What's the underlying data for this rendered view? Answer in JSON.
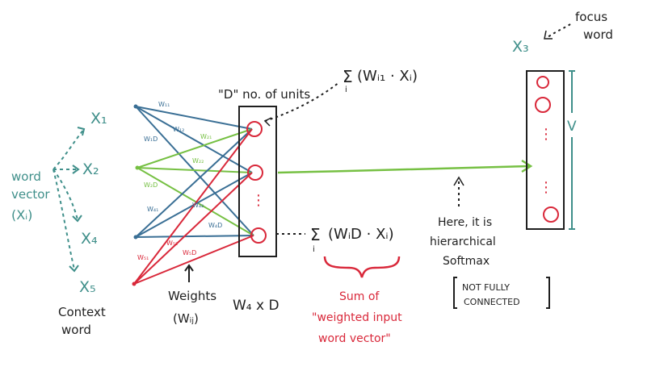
{
  "colors": {
    "teal": "#3f8f8a",
    "green": "#76c043",
    "red": "#d9283a",
    "ink": "#1f1f1f",
    "blue": "#3a6f95",
    "paper": "#ffffff"
  },
  "inputs": {
    "x1": "X₁",
    "x2": "X₂",
    "x4": "X₄",
    "x5": "X₅"
  },
  "left_label": {
    "line1": "word",
    "line2": "vector",
    "line3": "(Xᵢ)"
  },
  "context_label": {
    "line1": "Context",
    "line2": "word"
  },
  "weight_labels": {
    "w11": "W₁₁",
    "w12": "W₁₂",
    "w1d": "W₁D",
    "w21": "W₂₁",
    "w22": "W₂₂",
    "w2d": "W₂D",
    "w41": "W₄₁",
    "w42": "W₄₂",
    "w4d": "W₄D",
    "w51": "W₅₁",
    "w52": "W₅₂",
    "w5d": "W₅D"
  },
  "weights_label": {
    "line1": "Weights",
    "line2": "(Wᵢⱼ)"
  },
  "matrix_label": "W₄ x D",
  "hidden_layer": {
    "title": "\"D\" no. of units",
    "dots": "⋮"
  },
  "formula_top": {
    "sigma": "Σ",
    "sub": "i",
    "body": "(Wᵢ₁ · Xᵢ)"
  },
  "formula_bottom": {
    "sigma": "Σ",
    "sub": "i",
    "body": "(WᵢD · Xᵢ)"
  },
  "sum_note": {
    "line1": "Sum of",
    "line2": "\"weighted input",
    "line3": "word vector\""
  },
  "output": {
    "label": "X₃",
    "focus_line1": "focus",
    "focus_line2": "word",
    "v_label": "V",
    "dots": "⋮"
  },
  "softmax_note": {
    "line1": "Here, it is",
    "line2": "hierarchical",
    "line3": "Softmax",
    "bracket_line1": "NOT FULLY",
    "bracket_line2": "CONNECTED"
  }
}
